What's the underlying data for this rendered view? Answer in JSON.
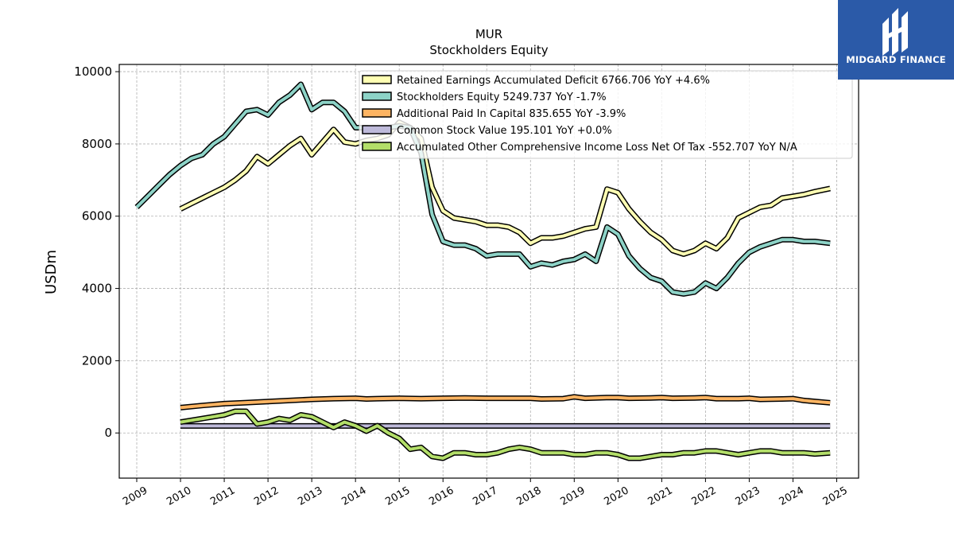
{
  "logo": {
    "text": "MIDGARD FINANCE",
    "background": "#2b5aa8"
  },
  "chart_data": {
    "type": "line",
    "title": "MUR",
    "subtitle": "Stockholders  Equity",
    "ylabel": "USDm",
    "xlabel": "",
    "xlim": [
      2008.6,
      2025.5
    ],
    "ylim": [
      -1250,
      10200
    ],
    "yticks": [
      0,
      2000,
      4000,
      6000,
      8000,
      10000
    ],
    "xticks": [
      "2009",
      "2010",
      "2011",
      "2012",
      "2013",
      "2014",
      "2015",
      "2016",
      "2017",
      "2018",
      "2019",
      "2020",
      "2021",
      "2022",
      "2023",
      "2024",
      "2025"
    ],
    "grid": true,
    "legend_position": "top-right",
    "series": [
      {
        "name": "Retained Earnings Accumulated Deficit",
        "legend": "Retained Earnings Accumulated Deficit  6766.706 YoY +4.6%",
        "color": "#ffffb3",
        "points": [
          [
            2010.0,
            6200
          ],
          [
            2010.25,
            6350
          ],
          [
            2010.5,
            6500
          ],
          [
            2010.75,
            6650
          ],
          [
            2011.0,
            6800
          ],
          [
            2011.25,
            7000
          ],
          [
            2011.5,
            7250
          ],
          [
            2011.75,
            7650
          ],
          [
            2012.0,
            7450
          ],
          [
            2012.25,
            7700
          ],
          [
            2012.5,
            7950
          ],
          [
            2012.75,
            8150
          ],
          [
            2013.0,
            7700
          ],
          [
            2013.25,
            8050
          ],
          [
            2013.5,
            8400
          ],
          [
            2013.75,
            8050
          ],
          [
            2014.0,
            8000
          ],
          [
            2014.25,
            8100
          ],
          [
            2014.5,
            8150
          ],
          [
            2014.75,
            8250
          ],
          [
            2015.0,
            8600
          ],
          [
            2015.25,
            8450
          ],
          [
            2015.5,
            8150
          ],
          [
            2015.75,
            6800
          ],
          [
            2016.0,
            6150
          ],
          [
            2016.25,
            5950
          ],
          [
            2016.5,
            5900
          ],
          [
            2016.75,
            5850
          ],
          [
            2017.0,
            5750
          ],
          [
            2017.25,
            5750
          ],
          [
            2017.5,
            5700
          ],
          [
            2017.75,
            5550
          ],
          [
            2018.0,
            5250
          ],
          [
            2018.25,
            5400
          ],
          [
            2018.5,
            5400
          ],
          [
            2018.75,
            5450
          ],
          [
            2019.0,
            5550
          ],
          [
            2019.25,
            5650
          ],
          [
            2019.5,
            5700
          ],
          [
            2019.75,
            6750
          ],
          [
            2020.0,
            6650
          ],
          [
            2020.25,
            6200
          ],
          [
            2020.5,
            5850
          ],
          [
            2020.75,
            5550
          ],
          [
            2021.0,
            5350
          ],
          [
            2021.25,
            5050
          ],
          [
            2021.5,
            4950
          ],
          [
            2021.75,
            5050
          ],
          [
            2022.0,
            5250
          ],
          [
            2022.25,
            5100
          ],
          [
            2022.5,
            5400
          ],
          [
            2022.75,
            5950
          ],
          [
            2023.0,
            6100
          ],
          [
            2023.25,
            6250
          ],
          [
            2023.5,
            6300
          ],
          [
            2023.75,
            6500
          ],
          [
            2024.0,
            6550
          ],
          [
            2024.25,
            6600
          ],
          [
            2024.5,
            6680
          ],
          [
            2024.85,
            6766.706
          ]
        ]
      },
      {
        "name": "Stockholders Equity",
        "legend": "Stockholders Equity  5249.737 YoY -1.7%",
        "color": "#8dd3c7",
        "points": [
          [
            2009.0,
            6250
          ],
          [
            2009.25,
            6550
          ],
          [
            2009.5,
            6850
          ],
          [
            2009.75,
            7150
          ],
          [
            2010.0,
            7400
          ],
          [
            2010.25,
            7600
          ],
          [
            2010.5,
            7700
          ],
          [
            2010.75,
            8000
          ],
          [
            2011.0,
            8200
          ],
          [
            2011.25,
            8550
          ],
          [
            2011.5,
            8900
          ],
          [
            2011.75,
            8950
          ],
          [
            2012.0,
            8800
          ],
          [
            2012.25,
            9150
          ],
          [
            2012.5,
            9350
          ],
          [
            2012.75,
            9650
          ],
          [
            2013.0,
            8950
          ],
          [
            2013.25,
            9150
          ],
          [
            2013.5,
            9150
          ],
          [
            2013.75,
            8900
          ],
          [
            2014.0,
            8450
          ],
          [
            2014.25,
            8450
          ],
          [
            2014.5,
            8400
          ],
          [
            2014.75,
            8450
          ],
          [
            2015.0,
            8500
          ],
          [
            2015.25,
            8450
          ],
          [
            2015.5,
            7750
          ],
          [
            2015.75,
            6050
          ],
          [
            2016.0,
            5300
          ],
          [
            2016.25,
            5200
          ],
          [
            2016.5,
            5200
          ],
          [
            2016.75,
            5100
          ],
          [
            2017.0,
            4900
          ],
          [
            2017.25,
            4950
          ],
          [
            2017.5,
            4950
          ],
          [
            2017.75,
            4950
          ],
          [
            2018.0,
            4600
          ],
          [
            2018.25,
            4700
          ],
          [
            2018.5,
            4650
          ],
          [
            2018.75,
            4750
          ],
          [
            2019.0,
            4800
          ],
          [
            2019.25,
            4950
          ],
          [
            2019.5,
            4750
          ],
          [
            2019.75,
            5700
          ],
          [
            2020.0,
            5500
          ],
          [
            2020.25,
            4900
          ],
          [
            2020.5,
            4550
          ],
          [
            2020.75,
            4300
          ],
          [
            2021.0,
            4200
          ],
          [
            2021.25,
            3900
          ],
          [
            2021.5,
            3850
          ],
          [
            2021.75,
            3900
          ],
          [
            2022.0,
            4150
          ],
          [
            2022.25,
            4000
          ],
          [
            2022.5,
            4300
          ],
          [
            2022.75,
            4700
          ],
          [
            2023.0,
            5000
          ],
          [
            2023.25,
            5150
          ],
          [
            2023.5,
            5250
          ],
          [
            2023.75,
            5350
          ],
          [
            2024.0,
            5350
          ],
          [
            2024.25,
            5300
          ],
          [
            2024.5,
            5300
          ],
          [
            2024.85,
            5249.737
          ]
        ]
      },
      {
        "name": "Additional Paid In Capital",
        "legend": "Additional Paid In Capital  835.655 YoY -3.9%",
        "color": "#fdb462",
        "points": [
          [
            2010.0,
            700
          ],
          [
            2010.5,
            760
          ],
          [
            2011.0,
            810
          ],
          [
            2011.5,
            840
          ],
          [
            2012.0,
            870
          ],
          [
            2012.5,
            900
          ],
          [
            2013.0,
            930
          ],
          [
            2013.5,
            950
          ],
          [
            2014.0,
            960
          ],
          [
            2014.25,
            940
          ],
          [
            2014.5,
            950
          ],
          [
            2015.0,
            960
          ],
          [
            2015.5,
            950
          ],
          [
            2016.0,
            960
          ],
          [
            2016.5,
            970
          ],
          [
            2017.0,
            960
          ],
          [
            2017.5,
            960
          ],
          [
            2018.0,
            960
          ],
          [
            2018.25,
            940
          ],
          [
            2018.75,
            950
          ],
          [
            2019.0,
            1000
          ],
          [
            2019.25,
            960
          ],
          [
            2019.75,
            980
          ],
          [
            2020.0,
            980
          ],
          [
            2020.25,
            960
          ],
          [
            2020.75,
            970
          ],
          [
            2021.0,
            980
          ],
          [
            2021.25,
            960
          ],
          [
            2021.75,
            970
          ],
          [
            2022.0,
            980
          ],
          [
            2022.25,
            950
          ],
          [
            2022.75,
            950
          ],
          [
            2023.0,
            960
          ],
          [
            2023.25,
            930
          ],
          [
            2023.75,
            940
          ],
          [
            2024.0,
            950
          ],
          [
            2024.25,
            900
          ],
          [
            2024.85,
            835.655
          ]
        ]
      },
      {
        "name": "Common Stock Value",
        "legend": "Common Stock Value  195.101 YoY +0.0%",
        "color": "#bebada",
        "points": [
          [
            2010.0,
            195.101
          ],
          [
            2024.85,
            195.101
          ]
        ]
      },
      {
        "name": "Accumulated Other Comprehensive Income Loss Net Of Tax",
        "legend": "Accumulated Other Comprehensive Income Loss Net Of Tax  -552.707 YoY N/A",
        "color": "#b3de69",
        "points": [
          [
            2010.0,
            300
          ],
          [
            2010.25,
            350
          ],
          [
            2010.5,
            400
          ],
          [
            2010.75,
            450
          ],
          [
            2011.0,
            500
          ],
          [
            2011.25,
            600
          ],
          [
            2011.5,
            600
          ],
          [
            2011.75,
            250
          ],
          [
            2012.0,
            300
          ],
          [
            2012.25,
            400
          ],
          [
            2012.5,
            350
          ],
          [
            2012.75,
            500
          ],
          [
            2013.0,
            450
          ],
          [
            2013.25,
            300
          ],
          [
            2013.5,
            150
          ],
          [
            2013.75,
            300
          ],
          [
            2014.0,
            200
          ],
          [
            2014.25,
            50
          ],
          [
            2014.5,
            200
          ],
          [
            2014.75,
            0
          ],
          [
            2015.0,
            -150
          ],
          [
            2015.25,
            -450
          ],
          [
            2015.5,
            -400
          ],
          [
            2015.75,
            -650
          ],
          [
            2016.0,
            -700
          ],
          [
            2016.25,
            -550
          ],
          [
            2016.5,
            -550
          ],
          [
            2016.75,
            -600
          ],
          [
            2017.0,
            -600
          ],
          [
            2017.25,
            -550
          ],
          [
            2017.5,
            -450
          ],
          [
            2017.75,
            -400
          ],
          [
            2018.0,
            -450
          ],
          [
            2018.25,
            -550
          ],
          [
            2018.5,
            -550
          ],
          [
            2018.75,
            -550
          ],
          [
            2019.0,
            -600
          ],
          [
            2019.25,
            -600
          ],
          [
            2019.5,
            -550
          ],
          [
            2019.75,
            -550
          ],
          [
            2020.0,
            -600
          ],
          [
            2020.25,
            -700
          ],
          [
            2020.5,
            -700
          ],
          [
            2020.75,
            -650
          ],
          [
            2021.0,
            -600
          ],
          [
            2021.25,
            -600
          ],
          [
            2021.5,
            -550
          ],
          [
            2021.75,
            -550
          ],
          [
            2022.0,
            -500
          ],
          [
            2022.25,
            -500
          ],
          [
            2022.5,
            -550
          ],
          [
            2022.75,
            -600
          ],
          [
            2023.0,
            -550
          ],
          [
            2023.25,
            -500
          ],
          [
            2023.5,
            -500
          ],
          [
            2023.75,
            -550
          ],
          [
            2024.0,
            -550
          ],
          [
            2024.25,
            -550
          ],
          [
            2024.5,
            -580
          ],
          [
            2024.85,
            -552.707
          ]
        ]
      }
    ]
  }
}
